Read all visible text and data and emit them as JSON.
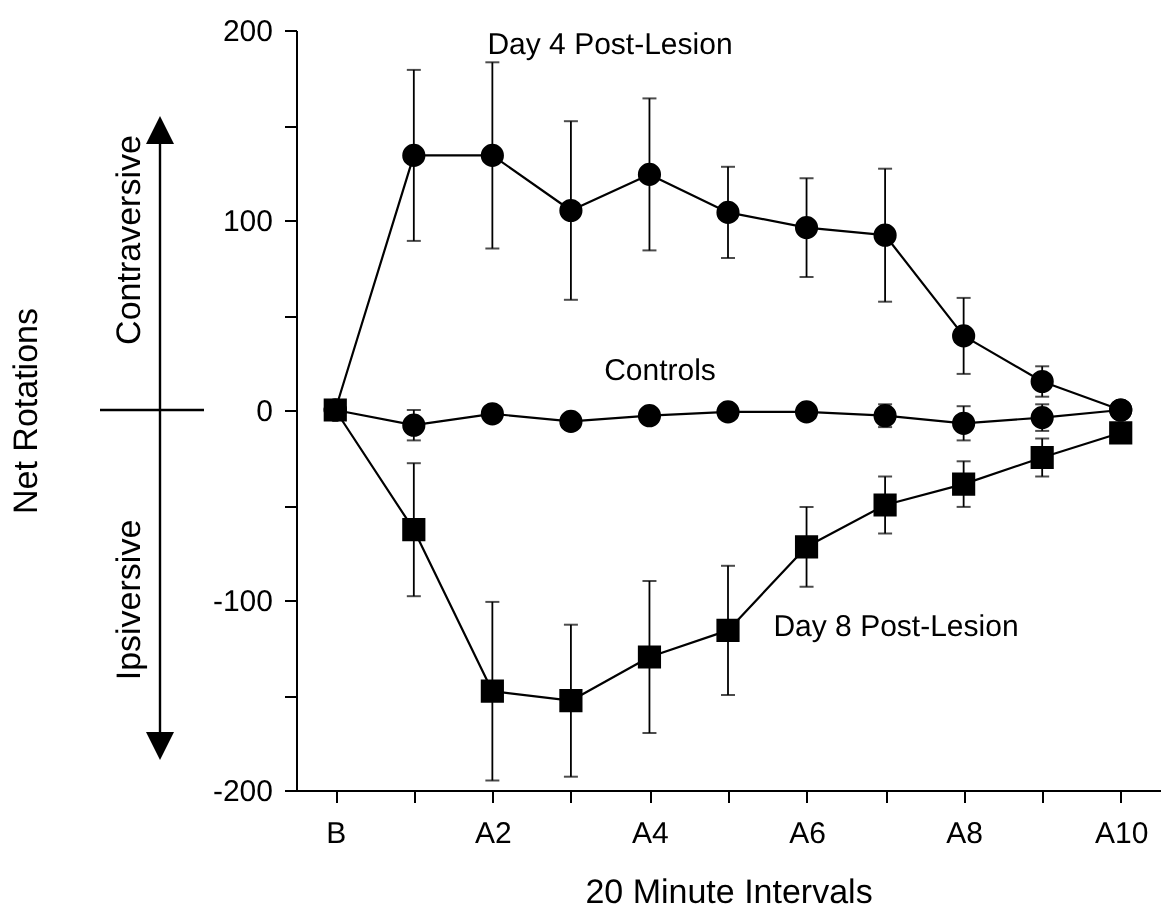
{
  "chart_data": {
    "type": "line",
    "xlabel": "20 Minute Intervals",
    "ylabel": "Net Rotations",
    "annotations": [
      "Contraversive",
      "Ipsiversive"
    ],
    "categories": [
      "B",
      null,
      "A2",
      null,
      "A4",
      null,
      "A6",
      null,
      "A8",
      null,
      "A10"
    ],
    "ylim": [
      -200,
      200
    ],
    "yticks": [
      -200,
      {
        "value": -150,
        "label": null
      },
      -100,
      {
        "value": -50,
        "label": null
      },
      0,
      {
        "value": 50,
        "label": null
      },
      100,
      {
        "value": 150,
        "label": null
      },
      200
    ],
    "grid": false,
    "line_style": "solid",
    "series": [
      {
        "name": "Day 4 Post-Lesion",
        "color": "#000000",
        "marker": "circle",
        "values": [
          0,
          134,
          134,
          105,
          124,
          104,
          96,
          92,
          39,
          15,
          0
        ],
        "errors": [
          null,
          45,
          49,
          47,
          40,
          24,
          26,
          35,
          20,
          8,
          null
        ]
      },
      {
        "name": "Controls",
        "color": "#000000",
        "marker": "circle",
        "values": [
          0,
          -8,
          -2,
          -6,
          -3,
          -1,
          -1,
          -3,
          -7,
          -4,
          0
        ],
        "errors": [
          null,
          8,
          null,
          null,
          null,
          null,
          null,
          6,
          9,
          7,
          null
        ]
      },
      {
        "name": "Day 8 Post-Lesion",
        "color": "#000000",
        "marker": "square",
        "values": [
          0,
          -63,
          -148,
          -153,
          -130,
          -116,
          -72,
          -50,
          -39,
          -25,
          -12
        ],
        "errors": [
          null,
          35,
          47,
          40,
          40,
          34,
          21,
          15,
          12,
          10,
          4
        ]
      }
    ]
  }
}
